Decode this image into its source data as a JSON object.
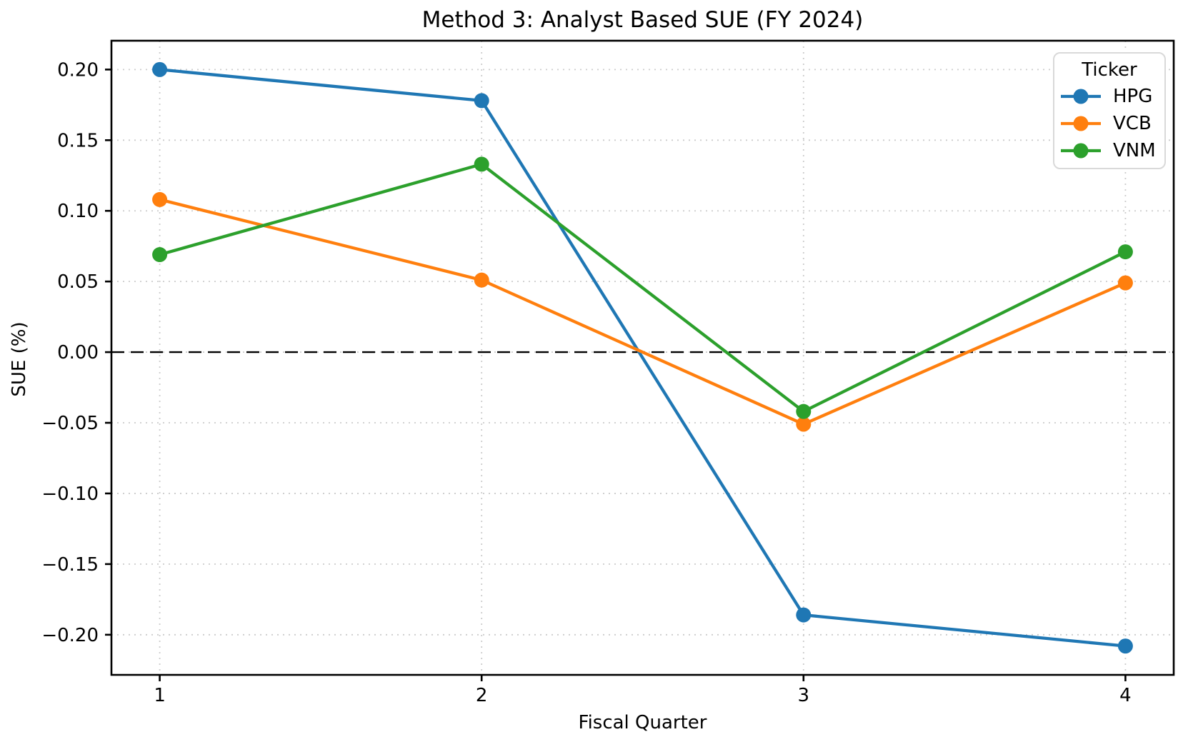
{
  "chart_data": {
    "type": "line",
    "title": "Method 3: Analyst Based SUE (FY 2024)",
    "xlabel": "Fiscal Quarter",
    "ylabel": "SUE (%)",
    "x": [
      1,
      2,
      3,
      4
    ],
    "xtick_labels": [
      "1",
      "2",
      "3",
      "4"
    ],
    "ytick_values": [
      0.2,
      0.15,
      0.1,
      0.05,
      0.0,
      -0.05,
      -0.1,
      -0.15,
      -0.2
    ],
    "ytick_labels": [
      "0.20",
      "0.15",
      "0.10",
      "0.05",
      "0.00",
      "−0.05",
      "−0.10",
      "−0.15",
      "−0.20"
    ],
    "xlim": [
      0.85,
      4.15
    ],
    "ylim": [
      -0.2284,
      0.2204
    ],
    "grid": true,
    "grid_style": "dotted",
    "zero_line": {
      "value": 0.0,
      "style": "dashed",
      "color": "#000000"
    },
    "legend": {
      "title": "Ticker",
      "position": "upper right"
    },
    "series": [
      {
        "name": "HPG",
        "color": "#1f77b4",
        "marker": "circle",
        "values": [
          0.2,
          0.178,
          -0.186,
          -0.208
        ]
      },
      {
        "name": "VCB",
        "color": "#ff7f0e",
        "marker": "circle",
        "values": [
          0.108,
          0.051,
          -0.051,
          0.049
        ]
      },
      {
        "name": "VNM",
        "color": "#2ca02c",
        "marker": "circle",
        "values": [
          0.069,
          0.133,
          -0.042,
          0.071
        ]
      }
    ]
  }
}
